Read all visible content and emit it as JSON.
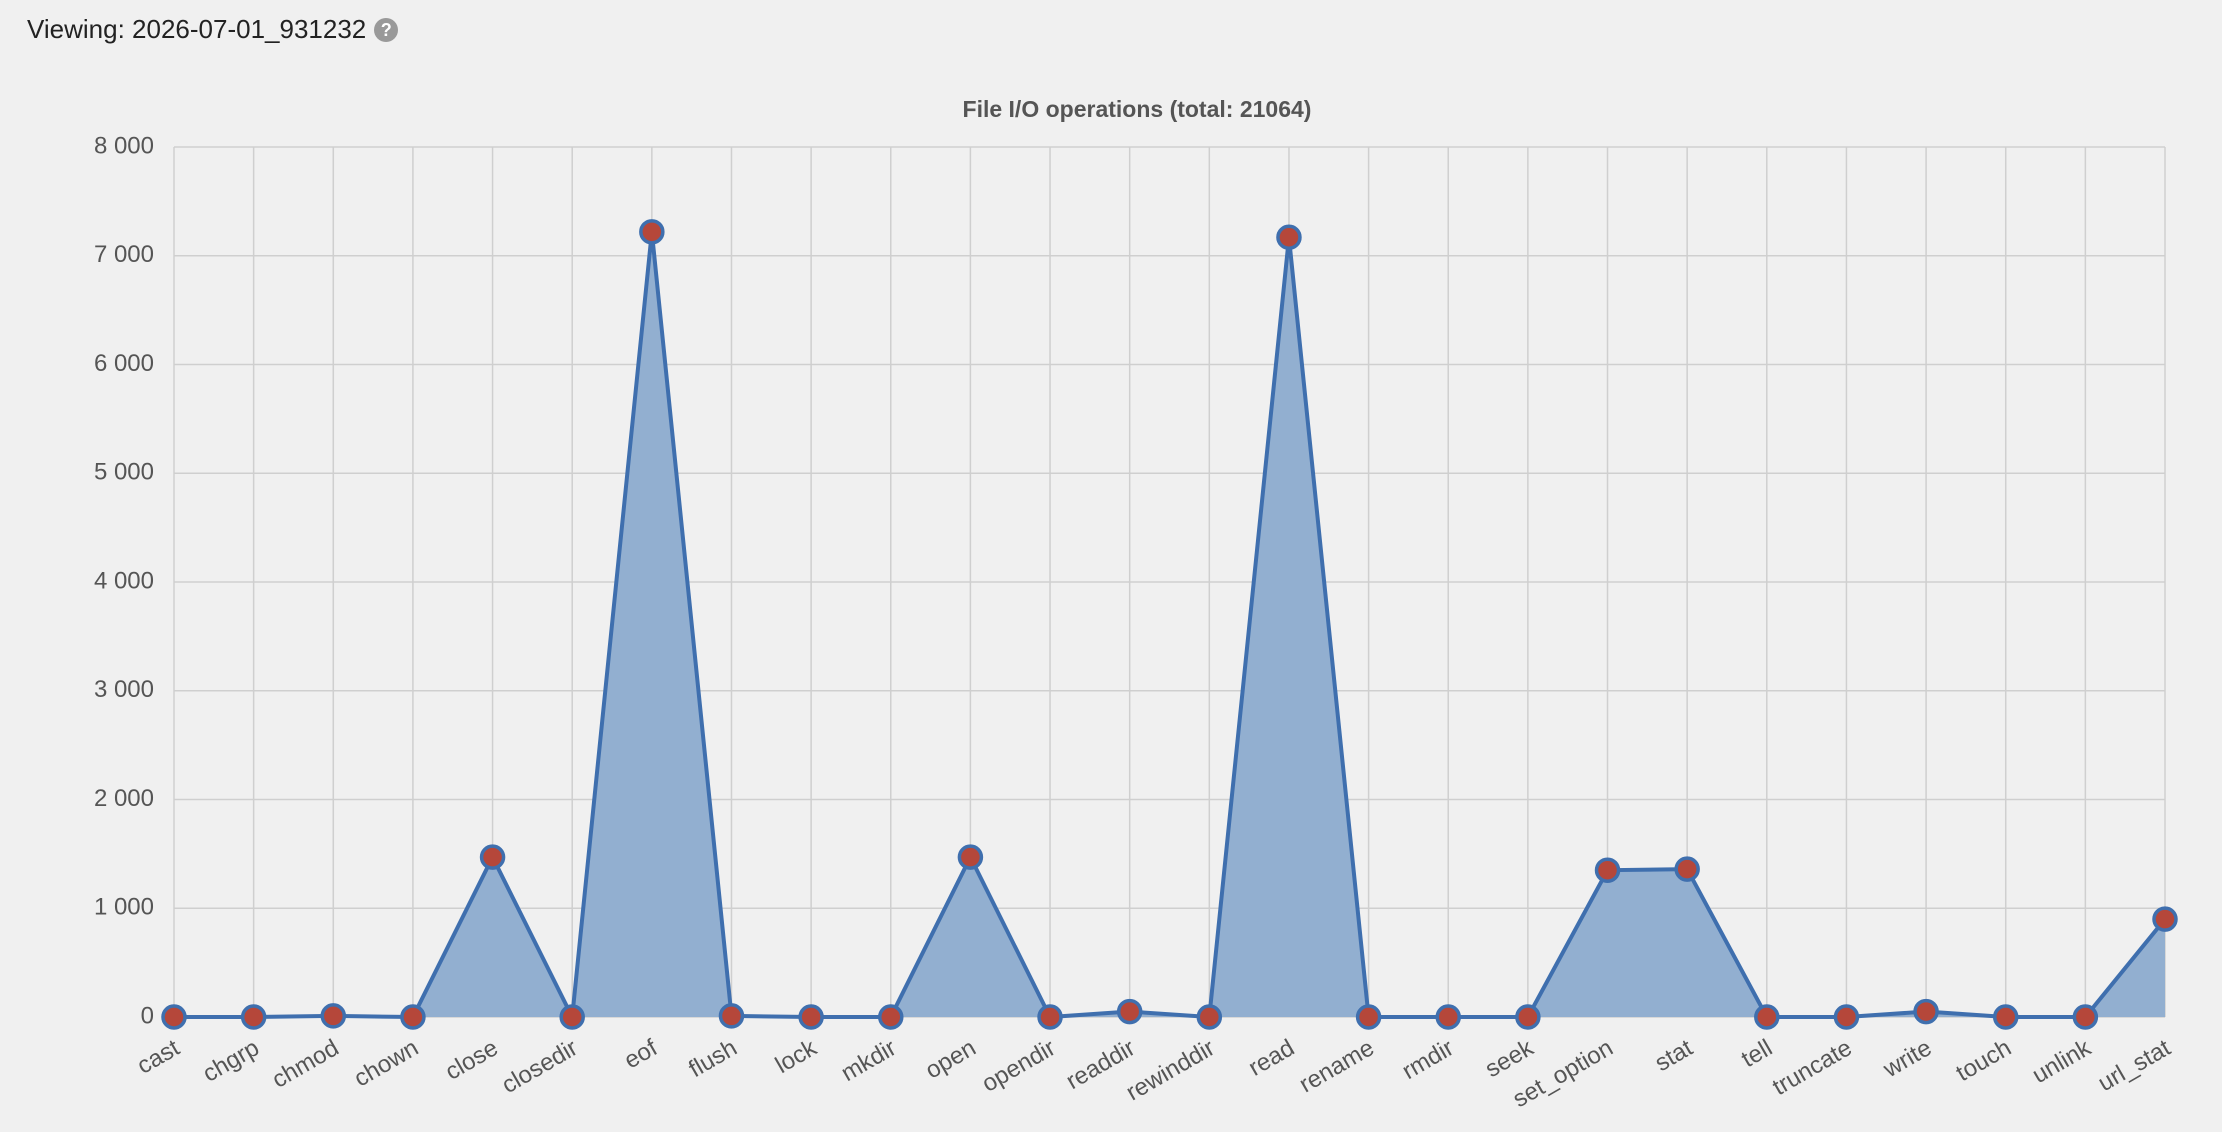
{
  "viewing_label": "Viewing: 2026-07-01_931232",
  "help_icon": "?",
  "chart_data": {
    "type": "area",
    "title": "File I/O operations (total: 21064)",
    "categories": [
      "cast",
      "chgrp",
      "chmod",
      "chown",
      "close",
      "closedir",
      "eof",
      "flush",
      "lock",
      "mkdir",
      "open",
      "opendir",
      "readdir",
      "rewinddir",
      "read",
      "rename",
      "rmdir",
      "seek",
      "set_option",
      "stat",
      "tell",
      "truncate",
      "write",
      "touch",
      "unlink",
      "url_stat"
    ],
    "values": [
      0,
      0,
      10,
      0,
      1470,
      0,
      7220,
      10,
      0,
      0,
      1470,
      0,
      50,
      0,
      7170,
      0,
      0,
      0,
      1350,
      1360,
      0,
      0,
      50,
      0,
      0,
      900
    ],
    "color": "#3f6fae",
    "fill_color": "#92afd0",
    "marker_color": "#b5473a",
    "ylim": [
      0,
      8000
    ],
    "yticks": [
      0,
      {
        "value": 1000,
        "label": "1 000"
      },
      {
        "value": 2000,
        "label": "2 000"
      },
      {
        "value": 3000,
        "label": "3 000"
      },
      {
        "value": 4000,
        "label": "4 000"
      },
      {
        "value": 5000,
        "label": "5 000"
      },
      {
        "value": 6000,
        "label": "6 000"
      },
      {
        "value": 7000,
        "label": "7 000"
      },
      {
        "value": 8000,
        "label": "8 000"
      }
    ],
    "grid": true
  }
}
